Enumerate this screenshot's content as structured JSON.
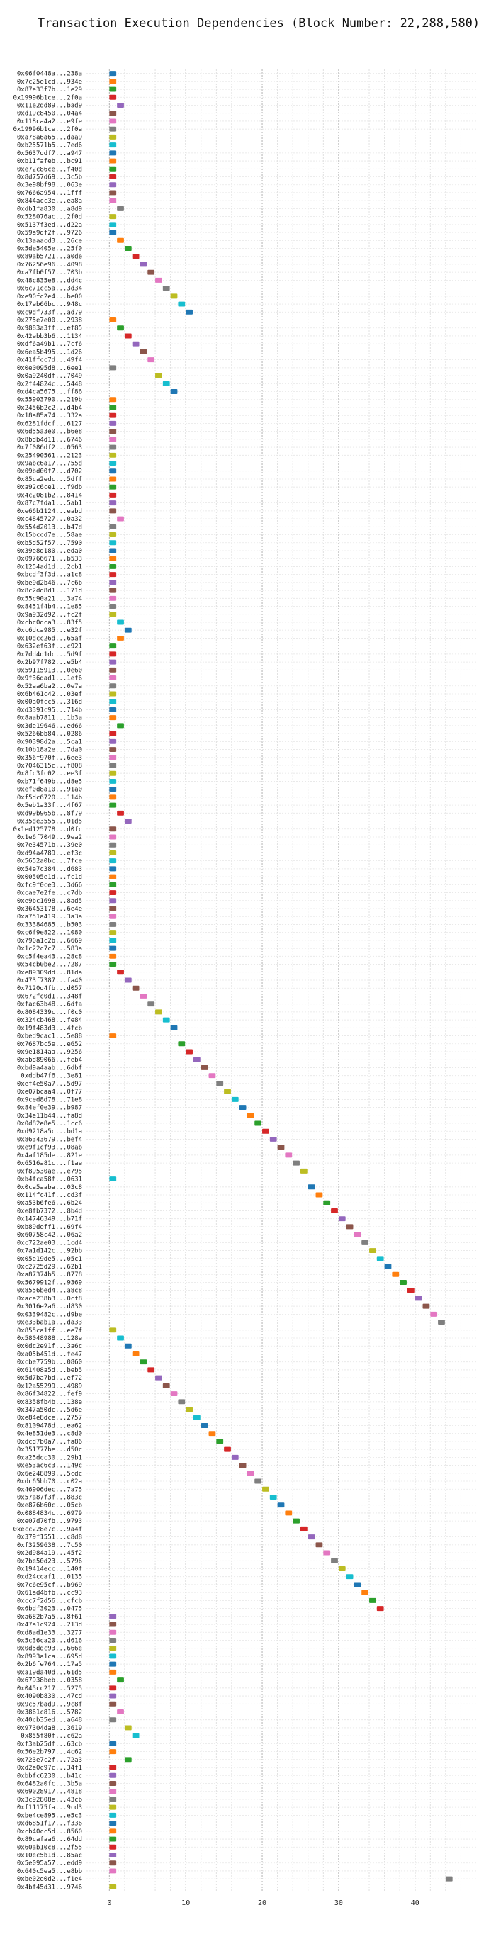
{
  "chart_data": {
    "type": "gantt",
    "title": "Transaction Execution Dependencies (Block Number: 22,288,580)",
    "xlabel": "",
    "ylabel": "",
    "xlim": [
      -3,
      48
    ],
    "x_ticks": [
      0,
      10,
      20,
      30,
      40
    ],
    "grid": "dotted vertical at major and minor ticks",
    "palette": [
      "#1f77b4",
      "#ff7f0e",
      "#2ca02c",
      "#d62728",
      "#9467bd",
      "#8c564b",
      "#e377c2",
      "#7f7f7f",
      "#bcbd22",
      "#17becf"
    ],
    "transactions": [
      {
        "label": "0x06f0448a...238a",
        "start": 0
      },
      {
        "label": "0x7c25e1cd...934e",
        "start": 0
      },
      {
        "label": "0x87e33f7b...1e29",
        "start": 0
      },
      {
        "label": "0x19996b1ce...2f0a",
        "start": 0
      },
      {
        "label": "0x11e2dd89...bad9",
        "start": 1
      },
      {
        "label": "0xd19c8450...04a4",
        "start": 0
      },
      {
        "label": "0x118ca4a2...e9fe",
        "start": 0
      },
      {
        "label": "0x19996b1ce...2f0a",
        "start": 0
      },
      {
        "label": "0xa78a6a65...daa9",
        "start": 0
      },
      {
        "label": "0xb25571b5...7ed6",
        "start": 0
      },
      {
        "label": "0x5637ddf7...a947",
        "start": 0
      },
      {
        "label": "0xb11fafeb...bc91",
        "start": 0
      },
      {
        "label": "0xe72c86ce...f40d",
        "start": 0
      },
      {
        "label": "0x8d757d69...3c5b",
        "start": 0
      },
      {
        "label": "0x3e98bf98...063e",
        "start": 0
      },
      {
        "label": "0x7666a954...1fff",
        "start": 0
      },
      {
        "label": "0x844acc3e...ea8a",
        "start": 0
      },
      {
        "label": "0xdb1fa830...a8d9",
        "start": 1
      },
      {
        "label": "0x528076ac...2f0d",
        "start": 0
      },
      {
        "label": "0x5137f3ed...d22a",
        "start": 0
      },
      {
        "label": "0x59a9df2f...9726",
        "start": 0
      },
      {
        "label": "0x13aaacd3...26ce",
        "start": 1
      },
      {
        "label": "0x5de5405e...25f0",
        "start": 2
      },
      {
        "label": "0x89ab5721...a0de",
        "start": 3
      },
      {
        "label": "0x76256e96...4098",
        "start": 4
      },
      {
        "label": "0xa7fb0f57...703b",
        "start": 5
      },
      {
        "label": "0x48c835e8...dd4c",
        "start": 6
      },
      {
        "label": "0x6c71cc5a...3d34",
        "start": 7
      },
      {
        "label": "0xe90fc2e4...be00",
        "start": 8
      },
      {
        "label": "0x17eb66bc...948c",
        "start": 9
      },
      {
        "label": "0xc9df733f...ad79",
        "start": 10
      },
      {
        "label": "0x275e7e00...2938",
        "start": 0
      },
      {
        "label": "0x9883a3ff...ef85",
        "start": 1
      },
      {
        "label": "0x42ebb3b6...1134",
        "start": 2
      },
      {
        "label": "0xdf6a49b1...7cf6",
        "start": 3
      },
      {
        "label": "0x6ea5b495...1d26",
        "start": 4
      },
      {
        "label": "0x41ffcc7d...49f4",
        "start": 5
      },
      {
        "label": "0x0e0095d8...6ee1",
        "start": 0
      },
      {
        "label": "0x0a9240df...7049",
        "start": 6
      },
      {
        "label": "0x2f44824c...5448",
        "start": 7
      },
      {
        "label": "0xd4ca5675...ff86",
        "start": 8
      },
      {
        "label": "0x55903790...219b",
        "start": 0
      },
      {
        "label": "0x2456b2c2...d4b4",
        "start": 0
      },
      {
        "label": "0x18a85a74...332a",
        "start": 0
      },
      {
        "label": "0x6281fdcf...6127",
        "start": 0
      },
      {
        "label": "0x6d55a3e0...b6e8",
        "start": 0
      },
      {
        "label": "0x8bdb4d11...6746",
        "start": 0
      },
      {
        "label": "0x7f086df2...0563",
        "start": 0
      },
      {
        "label": "0x25490561...2123",
        "start": 0
      },
      {
        "label": "0x9abc6a17...755d",
        "start": 0
      },
      {
        "label": "0x09bd00f7...d702",
        "start": 0
      },
      {
        "label": "0x85ca2edc...5dff",
        "start": 0
      },
      {
        "label": "0xa92c6ce1...f9db",
        "start": 0
      },
      {
        "label": "0x4c2081b2...8414",
        "start": 0
      },
      {
        "label": "0x87c7fda1...5ab1",
        "start": 0
      },
      {
        "label": "0xe66b1124...eabd",
        "start": 0
      },
      {
        "label": "0xc4845727...0a32",
        "start": 1
      },
      {
        "label": "0x554d2013...b47d",
        "start": 0
      },
      {
        "label": "0x15bccd7e...58ae",
        "start": 0
      },
      {
        "label": "0xb5d52f57...7590",
        "start": 0
      },
      {
        "label": "0x39e8d180...eda0",
        "start": 0
      },
      {
        "label": "0x09766671...b533",
        "start": 0
      },
      {
        "label": "0x1254ad1d...2cb1",
        "start": 0
      },
      {
        "label": "0xbcdf3f3d...a1c8",
        "start": 0
      },
      {
        "label": "0xbe9d2b46...7c6b",
        "start": 0
      },
      {
        "label": "0x8c2dd8d1...171d",
        "start": 0
      },
      {
        "label": "0x55c90a21...3a74",
        "start": 0
      },
      {
        "label": "0x8451f4b4...1e85",
        "start": 0
      },
      {
        "label": "0x9a932d92...fc2f",
        "start": 0
      },
      {
        "label": "0xcbc0dca3...83f5",
        "start": 1
      },
      {
        "label": "0xc6dca985...e32f",
        "start": 2
      },
      {
        "label": "0x10dcc26d...65af",
        "start": 1
      },
      {
        "label": "0x632ef63f...c921",
        "start": 0
      },
      {
        "label": "0x7dd4d1dc...5d9f",
        "start": 0
      },
      {
        "label": "0x2b97f782...e5b4",
        "start": 0
      },
      {
        "label": "0x59115913...0e60",
        "start": 0
      },
      {
        "label": "0x9f36dad1...1ef6",
        "start": 0
      },
      {
        "label": "0x52aa6ba2...0e7a",
        "start": 0
      },
      {
        "label": "0x6b461c42...03ef",
        "start": 0
      },
      {
        "label": "0x00a0fcc5...316d",
        "start": 0
      },
      {
        "label": "0xd3391c95...714b",
        "start": 0
      },
      {
        "label": "0x8aab7811...1b3a",
        "start": 0
      },
      {
        "label": "0x3de19646...ed66",
        "start": 1
      },
      {
        "label": "0x5266bb84...0286",
        "start": 0
      },
      {
        "label": "0x90398d2a...5ca1",
        "start": 0
      },
      {
        "label": "0x10b18a2e...7da0",
        "start": 0
      },
      {
        "label": "0x356f970f...6ee3",
        "start": 0
      },
      {
        "label": "0x7046315c...f808",
        "start": 0
      },
      {
        "label": "0x8fc3fc02...ee3f",
        "start": 0
      },
      {
        "label": "0xb71f649b...d8e5",
        "start": 0
      },
      {
        "label": "0xef0d8a10...91a0",
        "start": 0
      },
      {
        "label": "0xf5dc6720...114b",
        "start": 0
      },
      {
        "label": "0x5eb1a33f...4f67",
        "start": 0
      },
      {
        "label": "0xd99b965b...8f79",
        "start": 1
      },
      {
        "label": "0x35de3555...01d5",
        "start": 2
      },
      {
        "label": "0x1ed125778...d0fc",
        "start": 0
      },
      {
        "label": "0x1e6f7049...9ea2",
        "start": 0
      },
      {
        "label": "0x7e34571b...39e0",
        "start": 0
      },
      {
        "label": "0xd94a4789...ef3c",
        "start": 0
      },
      {
        "label": "0x5652a0bc...7fce",
        "start": 0
      },
      {
        "label": "0x54e7c384...d683",
        "start": 0
      },
      {
        "label": "0x00505e1d...fc1d",
        "start": 0
      },
      {
        "label": "0xfc9f0ce3...3d66",
        "start": 0
      },
      {
        "label": "0xcae7e2fe...c7db",
        "start": 0
      },
      {
        "label": "0xe9bc1698...8ad5",
        "start": 0
      },
      {
        "label": "0x36453178...6e4e",
        "start": 0
      },
      {
        "label": "0xa751a419...3a3a",
        "start": 0
      },
      {
        "label": "0x33384685...b503",
        "start": 0
      },
      {
        "label": "0xc6f9e822...1080",
        "start": 0
      },
      {
        "label": "0x790a1c2b...6669",
        "start": 0
      },
      {
        "label": "0x1c22c7c7...583a",
        "start": 0
      },
      {
        "label": "0xc5f4ea43...28c8",
        "start": 0
      },
      {
        "label": "0x54cb0be2...7287",
        "start": 0
      },
      {
        "label": "0xe89309dd...81da",
        "start": 1
      },
      {
        "label": "0x473f7387...fa40",
        "start": 2
      },
      {
        "label": "0x7120d4fb...d057",
        "start": 3
      },
      {
        "label": "0x672fc0d1...348f",
        "start": 4
      },
      {
        "label": "0xfac63b48...6dfa",
        "start": 5
      },
      {
        "label": "0x8084339c...f0c0",
        "start": 6
      },
      {
        "label": "0x324cb468...fe84",
        "start": 7
      },
      {
        "label": "0x19f483d3...4fcb",
        "start": 8
      },
      {
        "label": "0xbed9cac1...5e88",
        "start": 0
      },
      {
        "label": "0x7687bc5e...e652",
        "start": 9
      },
      {
        "label": "0x9e1814aa...9256",
        "start": 10
      },
      {
        "label": "0xabd89066...feb4",
        "start": 11
      },
      {
        "label": "0xbd9a4aab...6dbf",
        "start": 12
      },
      {
        "label": "0xddb47f6...3e81",
        "start": 13
      },
      {
        "label": "0xef4e50a7...5d97",
        "start": 14
      },
      {
        "label": "0xe07bcaa4...0f77",
        "start": 15
      },
      {
        "label": "0x9ced8d78...71e8",
        "start": 16
      },
      {
        "label": "0x84ef0e39...b987",
        "start": 17
      },
      {
        "label": "0x34e11b44...fa8d",
        "start": 18
      },
      {
        "label": "0x0d82e8e5...1cc6",
        "start": 19
      },
      {
        "label": "0xd9218a5c...bd1a",
        "start": 20
      },
      {
        "label": "0x86343679...bef4",
        "start": 21
      },
      {
        "label": "0xe9f1cf93...08ab",
        "start": 22
      },
      {
        "label": "0x4af185de...821e",
        "start": 23
      },
      {
        "label": "0x6516a81c...f1ae",
        "start": 24
      },
      {
        "label": "0xf89530ae...e795",
        "start": 25
      },
      {
        "label": "0xb4fca58f...0631",
        "start": 0
      },
      {
        "label": "0x0ca5aaba...03c8",
        "start": 26
      },
      {
        "label": "0x114fc41f...cd3f",
        "start": 27
      },
      {
        "label": "0xa53b6fe6...6b24",
        "start": 28
      },
      {
        "label": "0xe8fb7372...8b4d",
        "start": 29
      },
      {
        "label": "0x14746349...b71f",
        "start": 30
      },
      {
        "label": "0xb89deff1...69f4",
        "start": 31
      },
      {
        "label": "0x60758c42...06a2",
        "start": 32
      },
      {
        "label": "0xc722ae03...1cd4",
        "start": 33
      },
      {
        "label": "0x7a1d142c...92bb",
        "start": 34
      },
      {
        "label": "0x05e19de5...05c1",
        "start": 35
      },
      {
        "label": "0xc2725d29...62b1",
        "start": 36
      },
      {
        "label": "0xa87374b5...8778",
        "start": 37
      },
      {
        "label": "0x5679912f...9369",
        "start": 38
      },
      {
        "label": "0x8556bed4...a8c8",
        "start": 39
      },
      {
        "label": "0xace238b3...0cf8",
        "start": 40
      },
      {
        "label": "0x3016e2a6...d830",
        "start": 41
      },
      {
        "label": "0x0339482c...d9be",
        "start": 42
      },
      {
        "label": "0xe33bab1a...da33",
        "start": 43
      },
      {
        "label": "0x855ca1ff...ee7f",
        "start": 0
      },
      {
        "label": "0x58048988...128e",
        "start": 1
      },
      {
        "label": "0x0dc2e91f...3a6c",
        "start": 2
      },
      {
        "label": "0xa05b451d...fe47",
        "start": 3
      },
      {
        "label": "0xcbe7759b...0860",
        "start": 4
      },
      {
        "label": "0x61408a5d...beb5",
        "start": 5
      },
      {
        "label": "0x5d7ba7bd...ef72",
        "start": 6
      },
      {
        "label": "0x12a55299...4989",
        "start": 7
      },
      {
        "label": "0x86f34822...fef9",
        "start": 8
      },
      {
        "label": "0x8358fb4b...138e",
        "start": 9
      },
      {
        "label": "0x347a50dc...5d6e",
        "start": 10
      },
      {
        "label": "0xe84e8dce...2757",
        "start": 11
      },
      {
        "label": "0x8109478d...ea62",
        "start": 12
      },
      {
        "label": "0x4e851de3...c8d0",
        "start": 13
      },
      {
        "label": "0xdcd7b0a7...fa86",
        "start": 14
      },
      {
        "label": "0x351777be...d50c",
        "start": 15
      },
      {
        "label": "0xa25dcc30...29b1",
        "start": 16
      },
      {
        "label": "0xe53ac6c3...149c",
        "start": 17
      },
      {
        "label": "0x6e248899...5cdc",
        "start": 18
      },
      {
        "label": "0xdc65bb70...c02a",
        "start": 19
      },
      {
        "label": "0x46906dec...7a75",
        "start": 20
      },
      {
        "label": "0x57a87f3f...883c",
        "start": 21
      },
      {
        "label": "0xe876b60c...05cb",
        "start": 22
      },
      {
        "label": "0x0884834c...6979",
        "start": 23
      },
      {
        "label": "0xe07d70fb...9793",
        "start": 24
      },
      {
        "label": "0xecc228e7c...9a4f",
        "start": 25
      },
      {
        "label": "0x379f1551...c8d8",
        "start": 26
      },
      {
        "label": "0xf3259638...7c50",
        "start": 27
      },
      {
        "label": "0x2d984a19...45f2",
        "start": 28
      },
      {
        "label": "0x7be50d23...5796",
        "start": 29
      },
      {
        "label": "0x19414ecc...140f",
        "start": 30
      },
      {
        "label": "0xd24ccaf1...0135",
        "start": 31
      },
      {
        "label": "0x7c6e95cf...b969",
        "start": 32
      },
      {
        "label": "0x61ad4bfb...cc93",
        "start": 33
      },
      {
        "label": "0xcc7f2d56...cfcb",
        "start": 34
      },
      {
        "label": "0x6bdf3023...0475",
        "start": 35
      },
      {
        "label": "0xa682b7a5...8f61",
        "start": 0
      },
      {
        "label": "0x47a1c924...213d",
        "start": 0
      },
      {
        "label": "0xd8ad1e33...3277",
        "start": 0
      },
      {
        "label": "0x5c36ca20...d616",
        "start": 0
      },
      {
        "label": "0x0d5ddc93...666e",
        "start": 0
      },
      {
        "label": "0x8993a1ca...695d",
        "start": 0
      },
      {
        "label": "0x2b6fe764...17a5",
        "start": 0
      },
      {
        "label": "0xa19da40d...61d5",
        "start": 0
      },
      {
        "label": "0x67938beb...0358",
        "start": 1
      },
      {
        "label": "0x045cc217...5275",
        "start": 0
      },
      {
        "label": "0x4090b830...47cd",
        "start": 0
      },
      {
        "label": "0x9c57bad9...9c8f",
        "start": 0
      },
      {
        "label": "0x3861c816...5782",
        "start": 1
      },
      {
        "label": "0x40cb35ed...a648",
        "start": 0
      },
      {
        "label": "0x97304da8...3619",
        "start": 2
      },
      {
        "label": "0x855f80f...c62a",
        "start": 3
      },
      {
        "label": "0xf3ab25df...63cb",
        "start": 0
      },
      {
        "label": "0x56e2b797...4c62",
        "start": 0
      },
      {
        "label": "0x723e7c2f...72a3",
        "start": 2
      },
      {
        "label": "0xd2e0c97c...34f1",
        "start": 0
      },
      {
        "label": "0xbbfc6230...b41c",
        "start": 0
      },
      {
        "label": "0x6482a0fc...3b5a",
        "start": 0
      },
      {
        "label": "0x69028917...4818",
        "start": 0
      },
      {
        "label": "0x3c92808e...43cb",
        "start": 0
      },
      {
        "label": "0xf11175fa...9cd3",
        "start": 0
      },
      {
        "label": "0xbe4ce895...e5c3",
        "start": 0
      },
      {
        "label": "0xd6851f17...f336",
        "start": 0
      },
      {
        "label": "0xcb40cc5d...8560",
        "start": 0
      },
      {
        "label": "0x89cafaa6...64dd",
        "start": 0
      },
      {
        "label": "0x60ab10c8...2f55",
        "start": 0
      },
      {
        "label": "0x10ec5b1d...85ac",
        "start": 0
      },
      {
        "label": "0x5e095a57...edd9",
        "start": 0
      },
      {
        "label": "0x640c5ea5...e8bb",
        "start": 0
      },
      {
        "label": "0xbe02e0d2...f1e4",
        "start": 44
      },
      {
        "label": "0x4bf45d31...9746",
        "start": 0
      }
    ]
  }
}
